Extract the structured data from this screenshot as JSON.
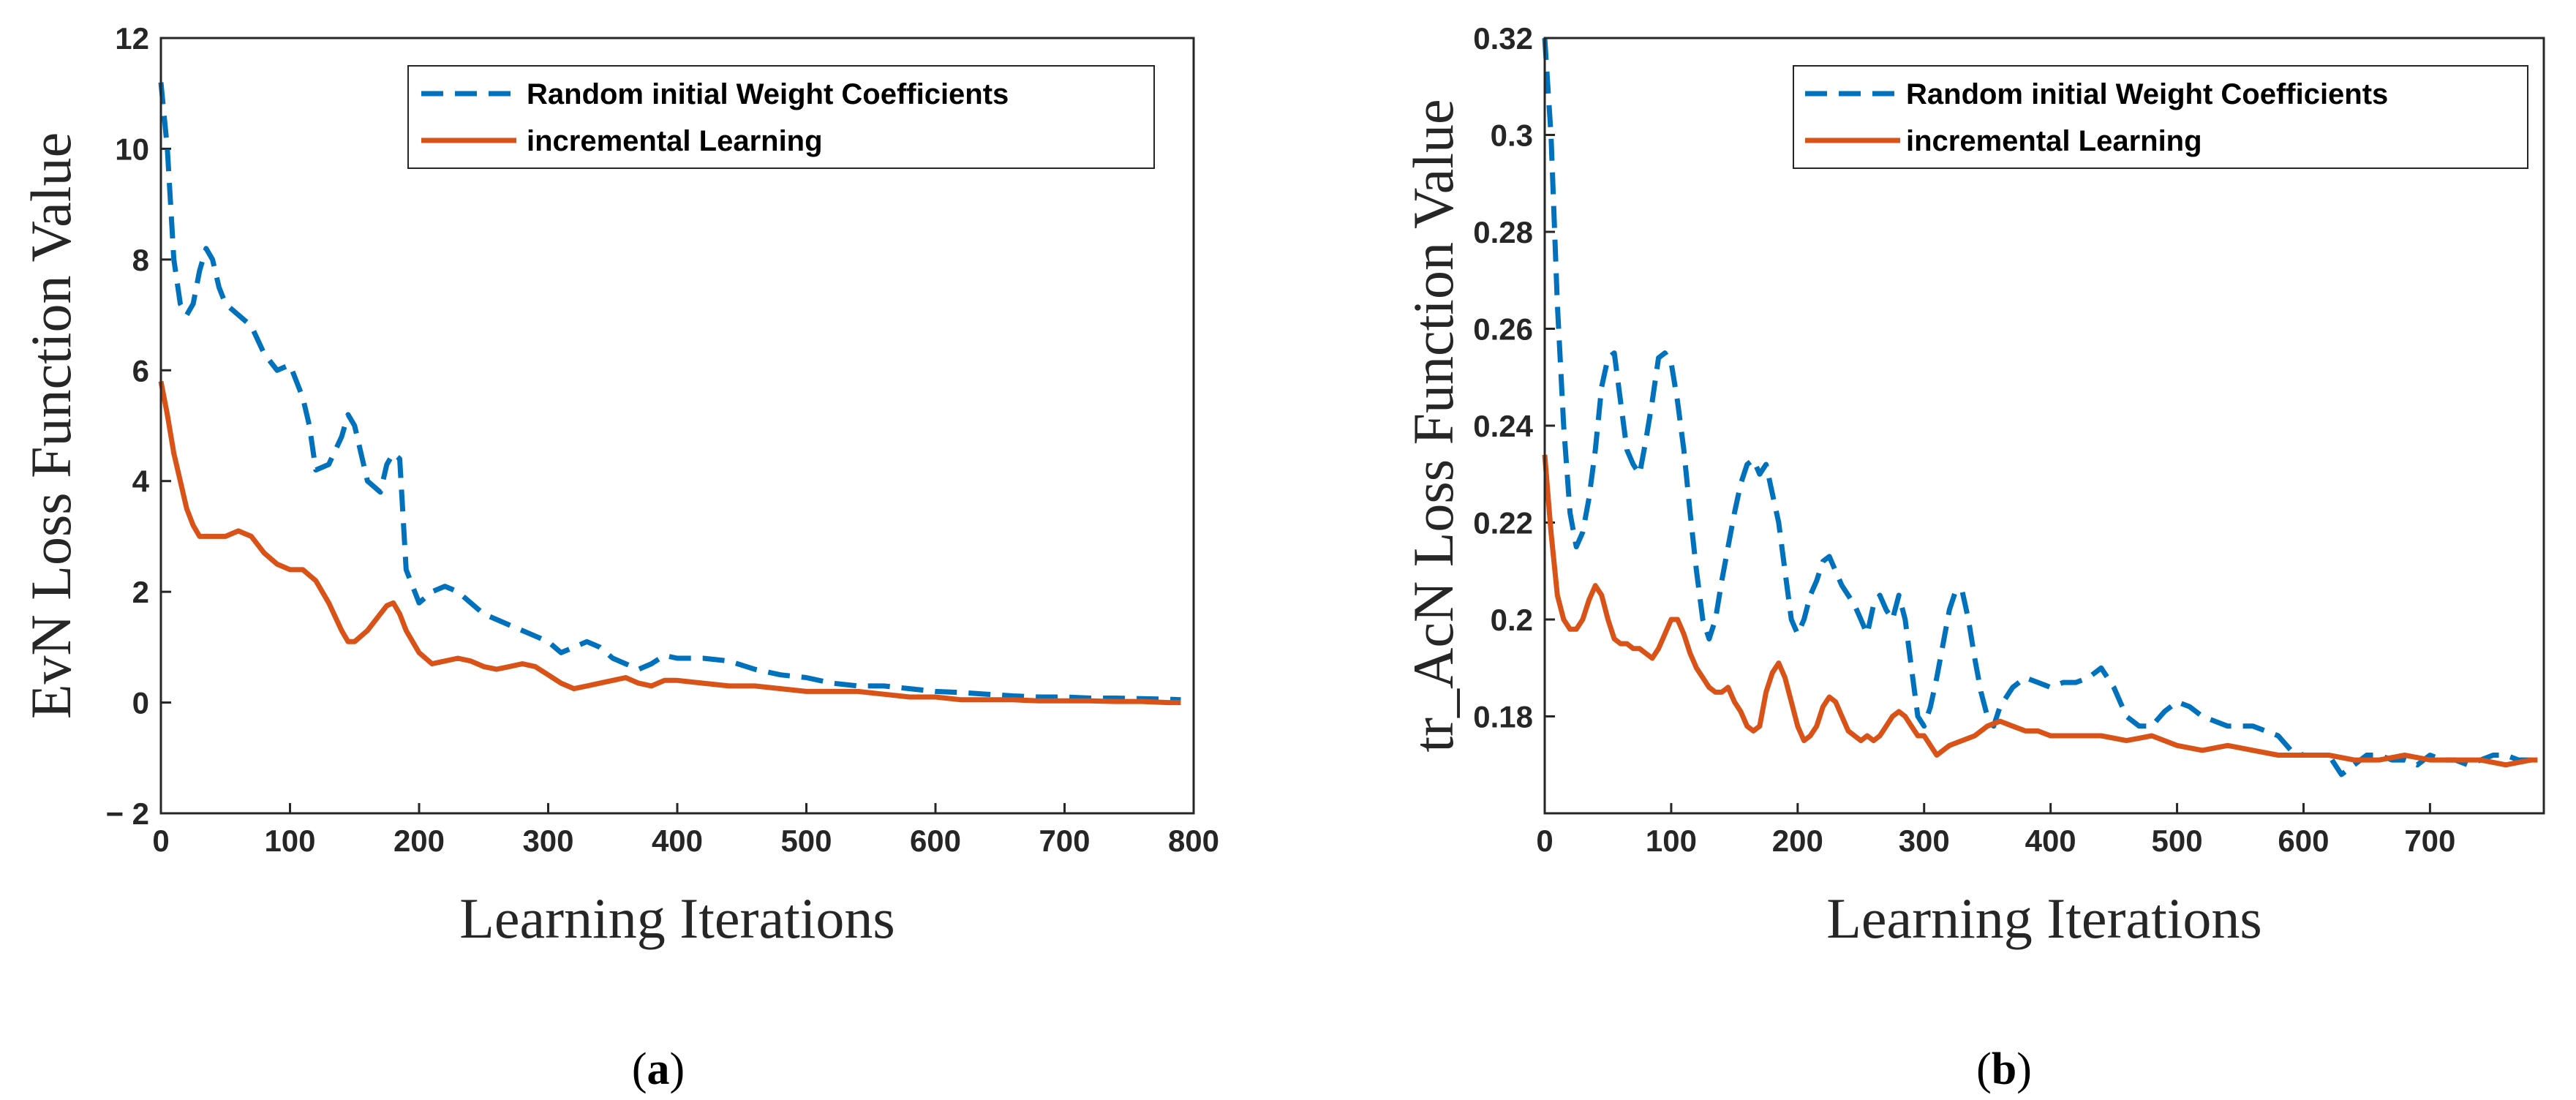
{
  "figure": {
    "captions": [
      {
        "open": "(",
        "letter": "a",
        "close": ")"
      },
      {
        "open": "(",
        "letter": "b",
        "close": ")"
      }
    ]
  },
  "chart_data": [
    {
      "type": "line",
      "id": "a",
      "xlabel": "Learning  Iterations",
      "ylabel": "EvN Loss Function Value",
      "xlim": [
        0,
        800
      ],
      "ylim": [
        -2,
        12
      ],
      "xticks": [
        0,
        100,
        200,
        300,
        400,
        500,
        600,
        700,
        800
      ],
      "xtick_labels": [
        "0",
        "100",
        "200",
        "300",
        "400",
        "500",
        "600",
        "700",
        "800"
      ],
      "yticks": [
        -2,
        0,
        2,
        4,
        6,
        8,
        10,
        12
      ],
      "ytick_labels": [
        "− 2",
        "0",
        "2",
        "4",
        "6",
        "8",
        "10",
        "12"
      ],
      "legend_position": "top-right",
      "series": [
        {
          "name": "Random initial Weight Coefficients",
          "color": "#0072BD",
          "dash": true,
          "x": [
            0,
            5,
            10,
            15,
            20,
            25,
            30,
            35,
            40,
            45,
            50,
            60,
            70,
            80,
            90,
            100,
            110,
            115,
            120,
            130,
            140,
            145,
            150,
            160,
            170,
            175,
            180,
            185,
            190,
            200,
            210,
            220,
            230,
            240,
            250,
            260,
            270,
            280,
            290,
            300,
            310,
            320,
            330,
            340,
            350,
            360,
            370,
            380,
            390,
            400,
            420,
            440,
            460,
            480,
            500,
            520,
            540,
            560,
            580,
            600,
            620,
            640,
            660,
            680,
            700,
            720,
            740,
            760,
            780,
            790
          ],
          "values": [
            11.2,
            10.0,
            8.0,
            7.2,
            7.0,
            7.2,
            7.8,
            8.2,
            8.0,
            7.5,
            7.2,
            7.0,
            6.8,
            6.3,
            6.0,
            6.1,
            5.5,
            5.0,
            4.2,
            4.3,
            4.8,
            5.2,
            5.0,
            4.0,
            3.8,
            4.3,
            4.5,
            4.4,
            2.4,
            1.8,
            2.0,
            2.1,
            2.0,
            1.8,
            1.6,
            1.5,
            1.4,
            1.3,
            1.2,
            1.1,
            0.9,
            1.0,
            1.1,
            1.0,
            0.8,
            0.7,
            0.6,
            0.7,
            0.85,
            0.8,
            0.8,
            0.75,
            0.6,
            0.5,
            0.45,
            0.35,
            0.3,
            0.3,
            0.25,
            0.2,
            0.18,
            0.15,
            0.12,
            0.1,
            0.1,
            0.08,
            0.08,
            0.07,
            0.06,
            0.05
          ]
        },
        {
          "name": "incremental Learning",
          "color": "#D95319",
          "dash": false,
          "x": [
            0,
            5,
            10,
            15,
            20,
            25,
            30,
            40,
            50,
            60,
            70,
            80,
            90,
            100,
            110,
            120,
            130,
            140,
            145,
            150,
            160,
            170,
            175,
            180,
            185,
            190,
            200,
            210,
            220,
            230,
            240,
            250,
            260,
            270,
            280,
            290,
            300,
            310,
            320,
            330,
            340,
            350,
            360,
            370,
            380,
            390,
            400,
            420,
            440,
            460,
            480,
            500,
            520,
            540,
            560,
            580,
            600,
            620,
            640,
            660,
            680,
            700,
            720,
            740,
            760,
            780,
            790
          ],
          "values": [
            5.8,
            5.2,
            4.5,
            4.0,
            3.5,
            3.2,
            3.0,
            3.0,
            3.0,
            3.1,
            3.0,
            2.7,
            2.5,
            2.4,
            2.4,
            2.2,
            1.8,
            1.3,
            1.1,
            1.1,
            1.3,
            1.6,
            1.75,
            1.8,
            1.6,
            1.3,
            0.9,
            0.7,
            0.75,
            0.8,
            0.75,
            0.65,
            0.6,
            0.65,
            0.7,
            0.65,
            0.5,
            0.35,
            0.25,
            0.3,
            0.35,
            0.4,
            0.45,
            0.35,
            0.3,
            0.4,
            0.4,
            0.35,
            0.3,
            0.3,
            0.25,
            0.2,
            0.2,
            0.2,
            0.15,
            0.1,
            0.1,
            0.05,
            0.05,
            0.05,
            0.03,
            0.03,
            0.03,
            0.02,
            0.02,
            0.0,
            0.0
          ]
        }
      ]
    },
    {
      "type": "line",
      "id": "b",
      "xlabel": "Learning  Iterations",
      "ylabel": "tr_AcN Loss Function Value",
      "xlim": [
        0,
        790
      ],
      "ylim": [
        0.16,
        0.32
      ],
      "xticks": [
        0,
        100,
        200,
        300,
        400,
        500,
        600,
        700
      ],
      "xtick_labels": [
        "0",
        "100",
        "200",
        "300",
        "400",
        "500",
        "600",
        "700"
      ],
      "yticks": [
        0.18,
        0.2,
        0.22,
        0.24,
        0.26,
        0.28,
        0.3,
        0.32
      ],
      "ytick_labels": [
        "0.18",
        "0.2",
        "0.22",
        "0.24",
        "0.26",
        "0.28",
        "0.3",
        "0.32"
      ],
      "legend_position": "top-right",
      "series": [
        {
          "name": "Random initial Weight Coefficients",
          "color": "#0072BD",
          "dash": true,
          "x": [
            0,
            5,
            10,
            15,
            20,
            25,
            30,
            35,
            40,
            45,
            50,
            55,
            60,
            65,
            70,
            75,
            80,
            85,
            90,
            95,
            100,
            105,
            110,
            115,
            120,
            125,
            130,
            135,
            140,
            145,
            150,
            155,
            160,
            165,
            170,
            175,
            180,
            185,
            190,
            195,
            200,
            205,
            210,
            215,
            220,
            225,
            230,
            235,
            240,
            245,
            250,
            255,
            260,
            265,
            270,
            275,
            280,
            285,
            290,
            295,
            300,
            305,
            310,
            315,
            320,
            325,
            330,
            335,
            340,
            345,
            350,
            355,
            360,
            370,
            380,
            390,
            400,
            410,
            420,
            430,
            440,
            450,
            460,
            470,
            480,
            490,
            500,
            510,
            520,
            530,
            540,
            550,
            560,
            570,
            580,
            590,
            600,
            610,
            620,
            630,
            640,
            650,
            660,
            670,
            680,
            690,
            700,
            710,
            720,
            730,
            740,
            750,
            760,
            770,
            780,
            785
          ],
          "values": [
            0.32,
            0.3,
            0.265,
            0.24,
            0.222,
            0.215,
            0.218,
            0.225,
            0.235,
            0.248,
            0.254,
            0.255,
            0.245,
            0.235,
            0.232,
            0.23,
            0.237,
            0.245,
            0.254,
            0.255,
            0.253,
            0.245,
            0.235,
            0.222,
            0.21,
            0.2,
            0.196,
            0.2,
            0.208,
            0.215,
            0.222,
            0.228,
            0.232,
            0.233,
            0.23,
            0.232,
            0.226,
            0.22,
            0.21,
            0.2,
            0.197,
            0.2,
            0.205,
            0.208,
            0.212,
            0.213,
            0.21,
            0.207,
            0.205,
            0.203,
            0.2,
            0.197,
            0.203,
            0.205,
            0.202,
            0.2,
            0.205,
            0.2,
            0.19,
            0.18,
            0.178,
            0.182,
            0.188,
            0.195,
            0.202,
            0.206,
            0.206,
            0.2,
            0.192,
            0.185,
            0.18,
            0.178,
            0.182,
            0.186,
            0.188,
            0.187,
            0.186,
            0.187,
            0.187,
            0.188,
            0.19,
            0.186,
            0.18,
            0.178,
            0.178,
            0.181,
            0.183,
            0.182,
            0.18,
            0.179,
            0.178,
            0.178,
            0.178,
            0.177,
            0.176,
            0.173,
            0.172,
            0.172,
            0.172,
            0.168,
            0.17,
            0.172,
            0.172,
            0.171,
            0.171,
            0.17,
            0.172,
            0.171,
            0.171,
            0.17,
            0.171,
            0.172,
            0.172,
            0.171,
            0.171,
            0.171
          ]
        },
        {
          "name": "incremental Learning",
          "color": "#D95319",
          "dash": false,
          "x": [
            0,
            5,
            10,
            15,
            20,
            25,
            30,
            35,
            40,
            45,
            50,
            55,
            60,
            65,
            70,
            75,
            80,
            85,
            90,
            95,
            100,
            105,
            110,
            115,
            120,
            125,
            130,
            135,
            140,
            145,
            150,
            155,
            160,
            165,
            170,
            175,
            180,
            185,
            190,
            195,
            200,
            205,
            210,
            215,
            220,
            225,
            230,
            235,
            240,
            245,
            250,
            255,
            260,
            265,
            270,
            275,
            280,
            285,
            290,
            295,
            300,
            305,
            310,
            320,
            330,
            340,
            350,
            360,
            370,
            380,
            390,
            400,
            420,
            440,
            460,
            480,
            500,
            520,
            540,
            560,
            580,
            600,
            620,
            640,
            660,
            680,
            700,
            720,
            740,
            760,
            780,
            785
          ],
          "values": [
            0.234,
            0.218,
            0.205,
            0.2,
            0.198,
            0.198,
            0.2,
            0.204,
            0.207,
            0.205,
            0.2,
            0.196,
            0.195,
            0.195,
            0.194,
            0.194,
            0.193,
            0.192,
            0.194,
            0.197,
            0.2,
            0.2,
            0.197,
            0.193,
            0.19,
            0.188,
            0.186,
            0.185,
            0.185,
            0.186,
            0.183,
            0.181,
            0.178,
            0.177,
            0.178,
            0.185,
            0.189,
            0.191,
            0.188,
            0.183,
            0.178,
            0.175,
            0.176,
            0.178,
            0.182,
            0.184,
            0.183,
            0.18,
            0.177,
            0.176,
            0.175,
            0.176,
            0.175,
            0.176,
            0.178,
            0.18,
            0.181,
            0.18,
            0.178,
            0.176,
            0.176,
            0.174,
            0.172,
            0.174,
            0.175,
            0.176,
            0.178,
            0.179,
            0.178,
            0.177,
            0.177,
            0.176,
            0.176,
            0.176,
            0.175,
            0.176,
            0.174,
            0.173,
            0.174,
            0.173,
            0.172,
            0.172,
            0.172,
            0.171,
            0.171,
            0.172,
            0.171,
            0.171,
            0.171,
            0.17,
            0.171,
            0.171
          ]
        }
      ]
    }
  ]
}
